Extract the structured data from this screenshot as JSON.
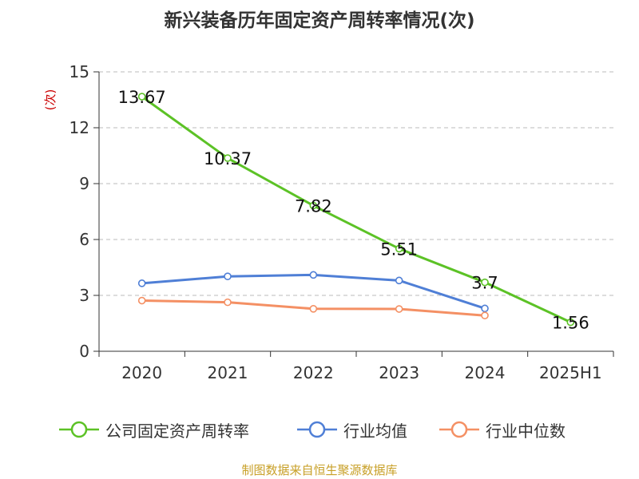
{
  "title": "新兴装备历年固定资产周转率情况(次)",
  "source": "制图数据来自恒生聚源数据库",
  "colors": {
    "company": "#5cc226",
    "industry_avg": "#4f7fd6",
    "industry_median": "#f49064",
    "grid": "#bbbbbb",
    "axis": "#333333",
    "ylabel": "#cc0000"
  },
  "chart_data": {
    "type": "line",
    "categories": [
      "2020",
      "2021",
      "2022",
      "2023",
      "2024",
      "2025H1"
    ],
    "ylabel": "(次)",
    "ylim": [
      0,
      15
    ],
    "yticks": [
      0,
      3,
      6,
      9,
      12,
      15
    ],
    "grid": true,
    "legend_position": "bottom",
    "series": [
      {
        "name": "公司固定资产周转率",
        "color": "#5cc226",
        "values": [
          13.67,
          10.37,
          7.82,
          5.51,
          3.7,
          1.56
        ],
        "labels": [
          "13.67",
          "10.37",
          "7.82",
          "5.51",
          "3.7",
          "1.56"
        ]
      },
      {
        "name": "行业均值",
        "color": "#4f7fd6",
        "values": [
          3.65,
          4.02,
          4.1,
          3.8,
          2.3,
          null
        ]
      },
      {
        "name": "行业中位数",
        "color": "#f49064",
        "values": [
          2.72,
          2.63,
          2.28,
          2.27,
          1.92,
          null
        ]
      }
    ]
  }
}
